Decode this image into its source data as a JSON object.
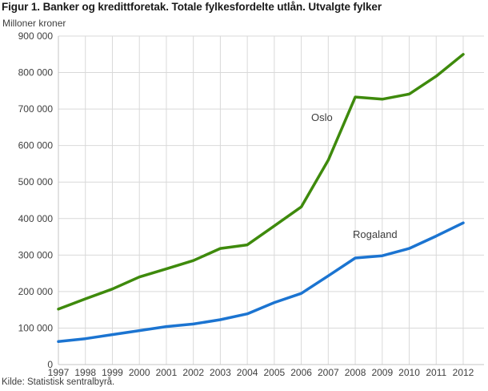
{
  "figure": {
    "title": "Figur 1. Banker og kredittforetak. Totale fylkesfordelte utlån. Utvalgte fylker",
    "unit": "Milloner kroner",
    "source": "Kilde: Statistisk sentralbyrå."
  },
  "chart_data": {
    "type": "line",
    "title": "Figur 1. Banker og kredittforetak. Totale fylkesfordelte utlån. Utvalgte fylker",
    "ylabel": "Milloner kroner",
    "xlabel": "",
    "x": [
      1997,
      1998,
      1999,
      2000,
      2001,
      2002,
      2003,
      2004,
      2005,
      2006,
      2007,
      2008,
      2009,
      2010,
      2011,
      2012
    ],
    "series": [
      {
        "name": "Oslo",
        "color": "#3e8a0c",
        "values": [
          152000,
          180000,
          207000,
          240000,
          262000,
          285000,
          318000,
          328000,
          380000,
          432000,
          560000,
          733000,
          727000,
          741000,
          790000,
          850000
        ],
        "label_pos": {
          "x": 389,
          "y": 151
        }
      },
      {
        "name": "Rogaland",
        "color": "#1b74d1",
        "values": [
          63000,
          71000,
          82000,
          93000,
          104000,
          111000,
          123000,
          139000,
          170000,
          195000,
          243000,
          292000,
          298000,
          318000,
          352000,
          388000
        ],
        "label_pos": {
          "x": 441,
          "y": 297
        }
      }
    ],
    "ylim": [
      0,
      900000
    ],
    "ytick_step": 100000,
    "grid": true,
    "legend": "inline-labels",
    "colors": {
      "grid": "#d9d9d9",
      "axis": "#c4c4c4",
      "tick_text": "#404040",
      "annotation_text": "#3d3d3d"
    }
  }
}
